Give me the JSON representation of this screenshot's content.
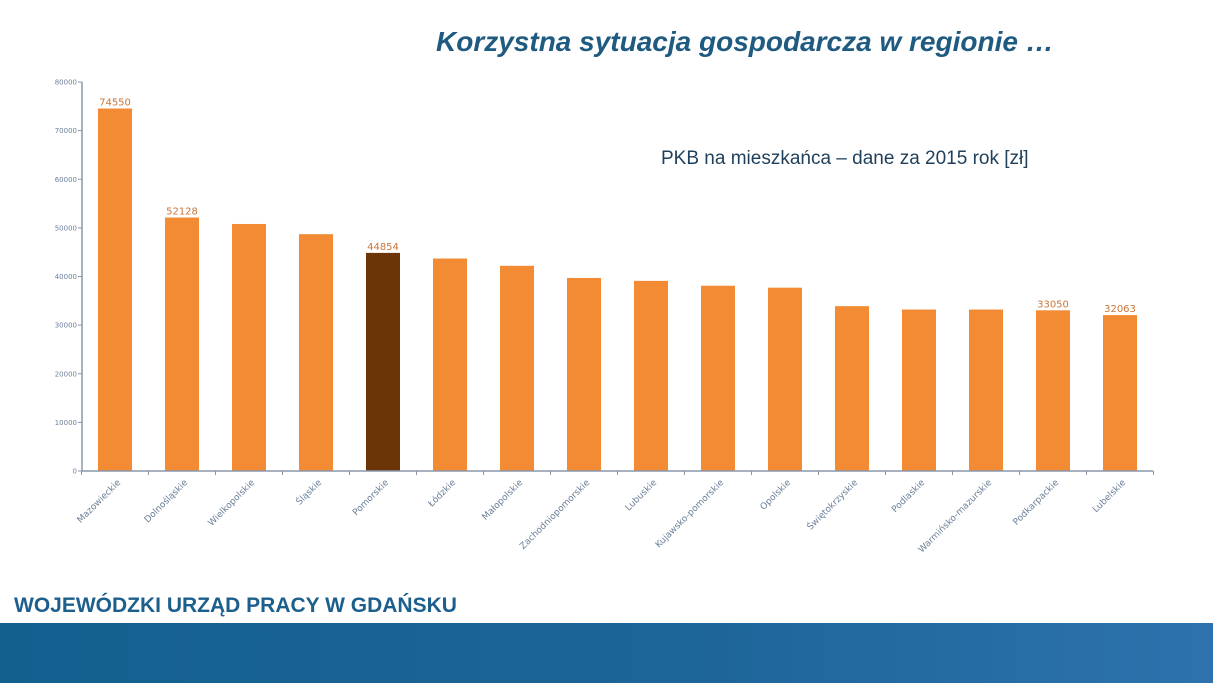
{
  "slide": {
    "title": "Korzystna sytuacja gospodarcza w regionie …",
    "footer_org": "WOJEWÓDZKI URZĄD PRACY W GDAŃSKU"
  },
  "chart_data": {
    "type": "bar",
    "subtitle": "PKB na mieszkańca – dane za 2015 rok  [zł]",
    "categories": [
      "Mazowieckie",
      "Dolnośląskie",
      "Wielkopolskie",
      "Śląskie",
      "Pomorskie",
      "Łódzkie",
      "Małopolskie",
      "Zachodniopomorskie",
      "Lubuskie",
      "Kujawsko-pomorskie",
      "Opolskie",
      "Świętokrzyskie",
      "Podlaskie",
      "Warmińsko-mazurskie",
      "Podkarpackie",
      "Lubelskie"
    ],
    "values": [
      74550,
      52128,
      50800,
      48700,
      44854,
      43700,
      42200,
      39700,
      39100,
      38100,
      37700,
      33900,
      33200,
      33200,
      33050,
      32063
    ],
    "data_labels": [
      "74550",
      "52128",
      "",
      "",
      "44854",
      "",
      "",
      "",
      "",
      "",
      "",
      "",
      "",
      "",
      "33050",
      "32063"
    ],
    "highlight_index": 4,
    "y_ticks": [
      "0",
      "10000",
      "20000",
      "30000",
      "40000",
      "50000",
      "60000",
      "70000",
      "80000"
    ],
    "ylim": [
      0,
      80000
    ],
    "grid": false,
    "legend": "none",
    "colors": {
      "bar": "#f28b34",
      "highlight": "#6b3508",
      "axis": "#8a97ab",
      "tick_label": "#6b7f99",
      "data_label": "#c8773a"
    }
  }
}
